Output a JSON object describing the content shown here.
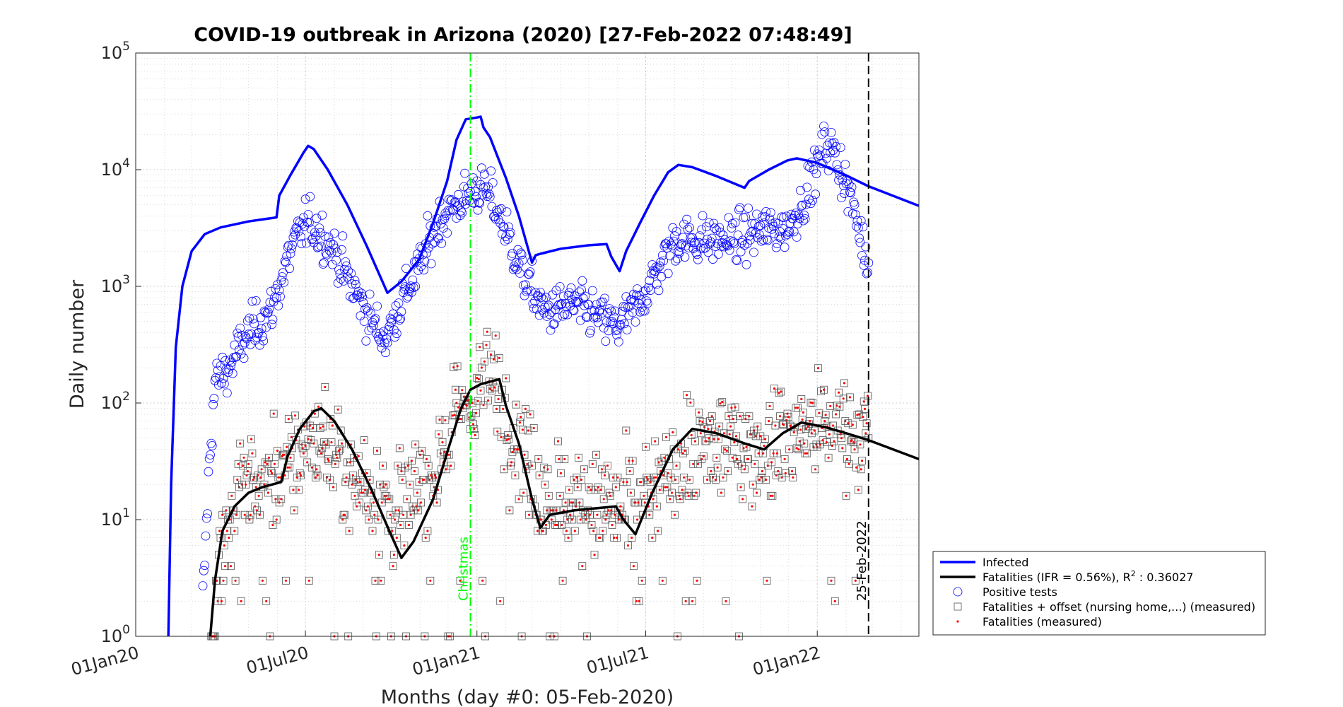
{
  "chart_data": {
    "type": "line",
    "title": "COVID-19 outbreak in Arizona (2020) [27-Feb-2022 07:48:49]",
    "xlabel": "Months (day #0: 05-Feb-2020)",
    "ylabel": "Daily number",
    "yscale": "log",
    "xlim": [
      "2020-01-01",
      "2022-04-20"
    ],
    "ylim": [
      1,
      100000
    ],
    "grid": true,
    "legend_position": "bottom-right",
    "x_ticks": [
      "01Jan20",
      "01Jul20",
      "01Jan21",
      "01Jul21",
      "01Jan22"
    ],
    "x_tick_dates": [
      "2020-01-01",
      "2020-07-01",
      "2021-01-01",
      "2021-07-01",
      "2022-01-01"
    ],
    "y_ticks": [
      {
        "base": "10",
        "exp": "0",
        "value": 1
      },
      {
        "base": "10",
        "exp": "1",
        "value": 10
      },
      {
        "base": "10",
        "exp": "2",
        "value": 100
      },
      {
        "base": "10",
        "exp": "3",
        "value": 1000
      },
      {
        "base": "10",
        "exp": "4",
        "value": 10000
      },
      {
        "base": "10",
        "exp": "5",
        "value": 100000
      }
    ],
    "vertical_lines": [
      {
        "label": "Christmas",
        "date": "2020-12-25",
        "color": "#00ff00",
        "style": "dash-dot"
      },
      {
        "label": "25-Feb-2022",
        "date": "2022-02-25",
        "color": "#000000",
        "style": "dashed"
      }
    ],
    "series": [
      {
        "name": "Infected",
        "kind": "line",
        "color": "#0000ff",
        "points": [
          [
            "2020-02-05",
            1
          ],
          [
            "2020-02-08",
            20
          ],
          [
            "2020-02-13",
            300
          ],
          [
            "2020-02-20",
            1000
          ],
          [
            "2020-03-01",
            2000
          ],
          [
            "2020-03-15",
            2800
          ],
          [
            "2020-04-01",
            3200
          ],
          [
            "2020-05-01",
            3600
          ],
          [
            "2020-05-31",
            3900
          ],
          [
            "2020-06-03",
            6000
          ],
          [
            "2020-06-15",
            9000
          ],
          [
            "2020-06-29",
            14000
          ],
          [
            "2020-07-04",
            16000
          ],
          [
            "2020-07-10",
            15000
          ],
          [
            "2020-07-25",
            10000
          ],
          [
            "2020-08-15",
            5000
          ],
          [
            "2020-09-05",
            2200
          ],
          [
            "2020-09-27",
            880
          ],
          [
            "2020-10-12",
            1100
          ],
          [
            "2020-10-31",
            1700
          ],
          [
            "2020-11-15",
            3500
          ],
          [
            "2020-11-30",
            8000
          ],
          [
            "2020-12-10",
            18000
          ],
          [
            "2020-12-20",
            27000
          ],
          [
            "2021-01-01",
            28000
          ],
          [
            "2021-01-05",
            28500
          ],
          [
            "2021-01-08",
            23000
          ],
          [
            "2021-01-15",
            19000
          ],
          [
            "2021-02-01",
            8500
          ],
          [
            "2021-02-15",
            4000
          ],
          [
            "2021-03-01",
            1600
          ],
          [
            "2021-03-05",
            1850
          ],
          [
            "2021-03-10",
            1900
          ],
          [
            "2021-04-01",
            2100
          ],
          [
            "2021-05-01",
            2250
          ],
          [
            "2021-05-20",
            2300
          ],
          [
            "2021-05-25",
            1800
          ],
          [
            "2021-06-03",
            1350
          ],
          [
            "2021-06-10",
            2000
          ],
          [
            "2021-06-25",
            3500
          ],
          [
            "2021-07-10",
            6000
          ],
          [
            "2021-07-25",
            9500
          ],
          [
            "2021-08-05",
            11000
          ],
          [
            "2021-08-20",
            10500
          ],
          [
            "2021-09-15",
            8800
          ],
          [
            "2021-10-15",
            7000
          ],
          [
            "2021-10-20",
            8000
          ],
          [
            "2021-11-10",
            10000
          ],
          [
            "2021-11-30",
            12000
          ],
          [
            "2021-12-10",
            12500
          ],
          [
            "2021-12-31",
            11500
          ],
          [
            "2022-01-31",
            9000
          ],
          [
            "2022-02-25",
            7200
          ],
          [
            "2022-04-20",
            4900
          ]
        ]
      },
      {
        "name": "Fatalities (IFR = 0.56%), R",
        "name_sup": "2",
        "name_suffix": " : 0.36027",
        "kind": "line",
        "color": "#000000",
        "points": [
          [
            "2020-03-21",
            1
          ],
          [
            "2020-03-26",
            3
          ],
          [
            "2020-04-03",
            8
          ],
          [
            "2020-04-16",
            13
          ],
          [
            "2020-05-01",
            17
          ],
          [
            "2020-05-16",
            19
          ],
          [
            "2020-06-05",
            21
          ],
          [
            "2020-06-12",
            35
          ],
          [
            "2020-06-25",
            60
          ],
          [
            "2020-07-10",
            85
          ],
          [
            "2020-07-18",
            90
          ],
          [
            "2020-08-01",
            70
          ],
          [
            "2020-08-20",
            40
          ],
          [
            "2020-09-10",
            18
          ],
          [
            "2020-09-29",
            8
          ],
          [
            "2020-10-12",
            4.7
          ],
          [
            "2020-10-25",
            6.5
          ],
          [
            "2020-11-15",
            15
          ],
          [
            "2020-12-01",
            40
          ],
          [
            "2020-12-15",
            90
          ],
          [
            "2020-12-25",
            130
          ],
          [
            "2021-01-05",
            145
          ],
          [
            "2021-01-25",
            160
          ],
          [
            "2021-02-01",
            95
          ],
          [
            "2021-02-15",
            45
          ],
          [
            "2021-03-01",
            15
          ],
          [
            "2021-03-10",
            8.5
          ],
          [
            "2021-03-20",
            11
          ],
          [
            "2021-04-15",
            12
          ],
          [
            "2021-05-30",
            13
          ],
          [
            "2021-06-07",
            10
          ],
          [
            "2021-06-20",
            7.5
          ],
          [
            "2021-07-08",
            17
          ],
          [
            "2021-07-30",
            40
          ],
          [
            "2021-08-20",
            60
          ],
          [
            "2021-09-15",
            55
          ],
          [
            "2021-10-15",
            45
          ],
          [
            "2021-11-05",
            40
          ],
          [
            "2021-11-25",
            55
          ],
          [
            "2021-12-15",
            68
          ],
          [
            "2022-01-10",
            62
          ],
          [
            "2022-02-01",
            55
          ],
          [
            "2022-02-25",
            48
          ],
          [
            "2022-04-20",
            33
          ]
        ]
      },
      {
        "name": "Positive tests",
        "kind": "markers",
        "marker": "circle",
        "color": "#0000ff",
        "note": "daily positive tests, approximate trend anchors; scatter shown around these",
        "anchors": [
          [
            "2020-03-13",
            2
          ],
          [
            "2020-03-20",
            30
          ],
          [
            "2020-03-26",
            150
          ],
          [
            "2020-04-10",
            200
          ],
          [
            "2020-05-01",
            400
          ],
          [
            "2020-05-25",
            600
          ],
          [
            "2020-06-15",
            2000
          ],
          [
            "2020-07-01",
            3500
          ],
          [
            "2020-07-15",
            3000
          ],
          [
            "2020-08-01",
            2000
          ],
          [
            "2020-08-20",
            1000
          ],
          [
            "2020-09-10",
            500
          ],
          [
            "2020-09-25",
            350
          ],
          [
            "2020-10-10",
            700
          ],
          [
            "2020-11-01",
            1500
          ],
          [
            "2020-11-20",
            3500
          ],
          [
            "2020-12-10",
            5000
          ],
          [
            "2021-01-01",
            7000
          ],
          [
            "2021-01-15",
            6000
          ],
          [
            "2021-02-01",
            3000
          ],
          [
            "2021-02-20",
            1200
          ],
          [
            "2021-03-15",
            600
          ],
          [
            "2021-04-15",
            700
          ],
          [
            "2021-05-10",
            550
          ],
          [
            "2021-06-01",
            450
          ],
          [
            "2021-06-20",
            650
          ],
          [
            "2021-07-10",
            1200
          ],
          [
            "2021-08-01",
            2500
          ],
          [
            "2021-09-01",
            2500
          ],
          [
            "2021-10-01",
            2500
          ],
          [
            "2021-11-01",
            3000
          ],
          [
            "2021-12-01",
            3200
          ],
          [
            "2021-12-20",
            6000
          ],
          [
            "2022-01-10",
            17000
          ],
          [
            "2022-01-20",
            14000
          ],
          [
            "2022-02-05",
            6000
          ],
          [
            "2022-02-25",
            1500
          ]
        ]
      },
      {
        "name": "Fatalities + offset (nursing home,...) (measured)",
        "kind": "markers",
        "marker": "square",
        "color": "#555555",
        "note": "daily fatalities (measured), approximate trend anchors; scatter shown around these",
        "anchors": [
          [
            "2020-03-22",
            1
          ],
          [
            "2020-04-01",
            7
          ],
          [
            "2020-04-20",
            15
          ],
          [
            "2020-05-15",
            20
          ],
          [
            "2020-06-15",
            30
          ],
          [
            "2020-07-10",
            50
          ],
          [
            "2020-07-25",
            45
          ],
          [
            "2020-08-15",
            25
          ],
          [
            "2020-09-10",
            20
          ],
          [
            "2020-10-01",
            12
          ],
          [
            "2020-10-20",
            12
          ],
          [
            "2020-11-15",
            30
          ],
          [
            "2020-12-10",
            70
          ],
          [
            "2021-01-01",
            130
          ],
          [
            "2021-01-20",
            140
          ],
          [
            "2021-02-10",
            60
          ],
          [
            "2021-03-01",
            25
          ],
          [
            "2021-04-01",
            15
          ],
          [
            "2021-05-01",
            14
          ],
          [
            "2021-06-01",
            12
          ],
          [
            "2021-07-01",
            12
          ],
          [
            "2021-08-01",
            30
          ],
          [
            "2021-09-01",
            40
          ],
          [
            "2021-10-01",
            45
          ],
          [
            "2021-11-01",
            40
          ],
          [
            "2021-12-01",
            55
          ],
          [
            "2022-01-01",
            60
          ],
          [
            "2022-02-01",
            60
          ],
          [
            "2022-02-25",
            50
          ]
        ]
      },
      {
        "name": "Fatalities (measured)",
        "kind": "markers",
        "marker": "dot",
        "color": "#ff0000"
      }
    ]
  }
}
